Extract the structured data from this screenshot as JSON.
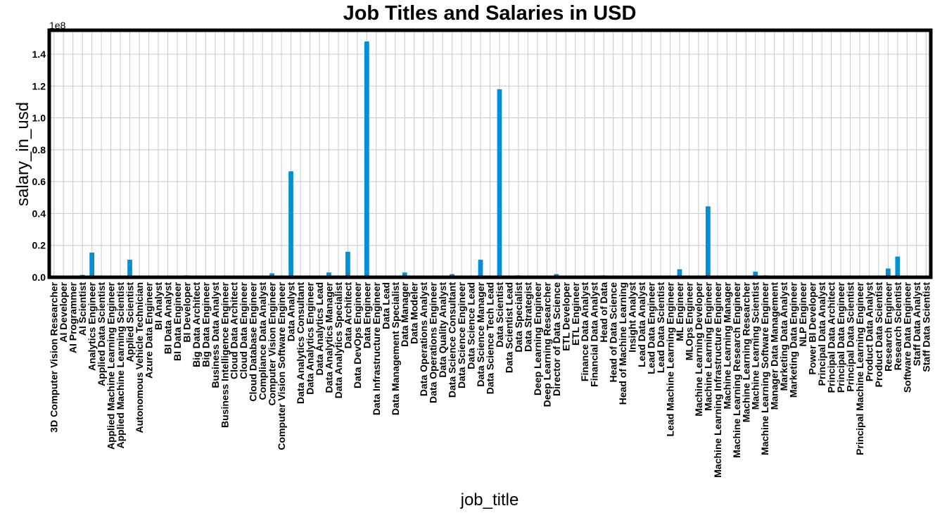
{
  "chart_data": {
    "type": "bar",
    "title": "Job Titles and Salaries in USD",
    "xlabel": "job_title",
    "ylabel": "salary_in_usd",
    "y_offset_label": "1e8",
    "y_tick_labels": [
      "0.0",
      "0.2",
      "0.4",
      "0.6",
      "0.8",
      "1.0",
      "1.2",
      "1.4"
    ],
    "ylim": [
      0,
      1.55
    ],
    "grid": true,
    "bar_color": "#0090d8",
    "categories": [
      "3D Computer Vision Researcher",
      "AI Developer",
      "AI Programmer",
      "AI Scientist",
      "Analytics Engineer",
      "Applied Data Scientist",
      "Applied Machine Learning Engineer",
      "Applied Machine Learning Scientist",
      "Applied Scientist",
      "Autonomous Vehicle Technician",
      "Azure Data Engineer",
      "BI Analyst",
      "BI Data Analyst",
      "BI Data Engineer",
      "BI Developer",
      "Big Data Architect",
      "Big Data Engineer",
      "Business Data Analyst",
      "Business Intelligence Engineer",
      "Cloud Data Architect",
      "Cloud Data Engineer",
      "Cloud Database Engineer",
      "Compliance Data Analyst",
      "Computer Vision Engineer",
      "Computer Vision Software Engineer",
      "Data Analyst",
      "Data Analytics Consultant",
      "Data Analytics Engineer",
      "Data Analytics Lead",
      "Data Analytics Manager",
      "Data Analytics Specialist",
      "Data Architect",
      "Data DevOps Engineer",
      "Data Engineer",
      "Data Infrastructure Engineer",
      "Data Lead",
      "Data Management Specialist",
      "Data Manager",
      "Data Modeler",
      "Data Operations Analyst",
      "Data Operations Engineer",
      "Data Quality Analyst",
      "Data Science Consultant",
      "Data Science Engineer",
      "Data Science Lead",
      "Data Science Manager",
      "Data Science Tech Lead",
      "Data Scientist",
      "Data Scientist Lead",
      "Data Specialist",
      "Data Strategist",
      "Deep Learning Engineer",
      "Deep Learning Researcher",
      "Director of Data Science",
      "ETL Developer",
      "ETL Engineer",
      "Finance Data Analyst",
      "Financial Data Analyst",
      "Head of Data",
      "Head of Data Science",
      "Head of Machine Learning",
      "Insight Analyst",
      "Lead Data Analyst",
      "Lead Data Engineer",
      "Lead Data Scientist",
      "Lead Machine Learning Engineer",
      "ML Engineer",
      "MLOps Engineer",
      "Machine Learning Developer",
      "Machine Learning Engineer",
      "Machine Learning Infrastructure Engineer",
      "Machine Learning Manager",
      "Machine Learning Research Engineer",
      "Machine Learning Researcher",
      "Machine Learning Scientist",
      "Machine Learning Software Engineer",
      "Manager Data Management",
      "Marketing Data Analyst",
      "Marketing Data Engineer",
      "NLP Engineer",
      "Power BI Developer",
      "Principal Data Analyst",
      "Principal Data Architect",
      "Principal Data Engineer",
      "Principal Data Scientist",
      "Principal Machine Learning Engineer",
      "Product Data Analyst",
      "Product Data Scientist",
      "Research Engineer",
      "Research Scientist",
      "Software Data Engineer",
      "Staff Data Analyst",
      "Staff Data Scientist"
    ],
    "values": [
      0.0005,
      0.002,
      0.001,
      0.015,
      0.155,
      0.004,
      0.003,
      0.01,
      0.11,
      0.0007,
      0.001,
      0.001,
      0.003,
      0.001,
      0.012,
      0.004,
      0.003,
      0.004,
      0.002,
      0.003,
      0.003,
      0.0015,
      0.0005,
      0.025,
      0.003,
      0.665,
      0.004,
      0.003,
      0.002,
      0.03,
      0.002,
      0.16,
      0.004,
      1.48,
      0.007,
      0.002,
      0.002,
      0.03,
      0.005,
      0.001,
      0.002,
      0.003,
      0.02,
      0.008,
      0.004,
      0.11,
      0.007,
      1.18,
      0.006,
      0.012,
      0.003,
      0.003,
      0.002,
      0.02,
      0.002,
      0.003,
      0.001,
      0.001,
      0.012,
      0.007,
      0.002,
      0.0005,
      0.003,
      0.003,
      0.003,
      0.003,
      0.05,
      0.004,
      0.005,
      0.445,
      0.004,
      0.002,
      0.004,
      0.003,
      0.035,
      0.012,
      0.001,
      0.002,
      0.002,
      0.003,
      0.002,
      0.003,
      0.003,
      0.004,
      0.008,
      0.004,
      0.004,
      0.003,
      0.055,
      0.13,
      0.004,
      0.001,
      0.001
    ]
  }
}
